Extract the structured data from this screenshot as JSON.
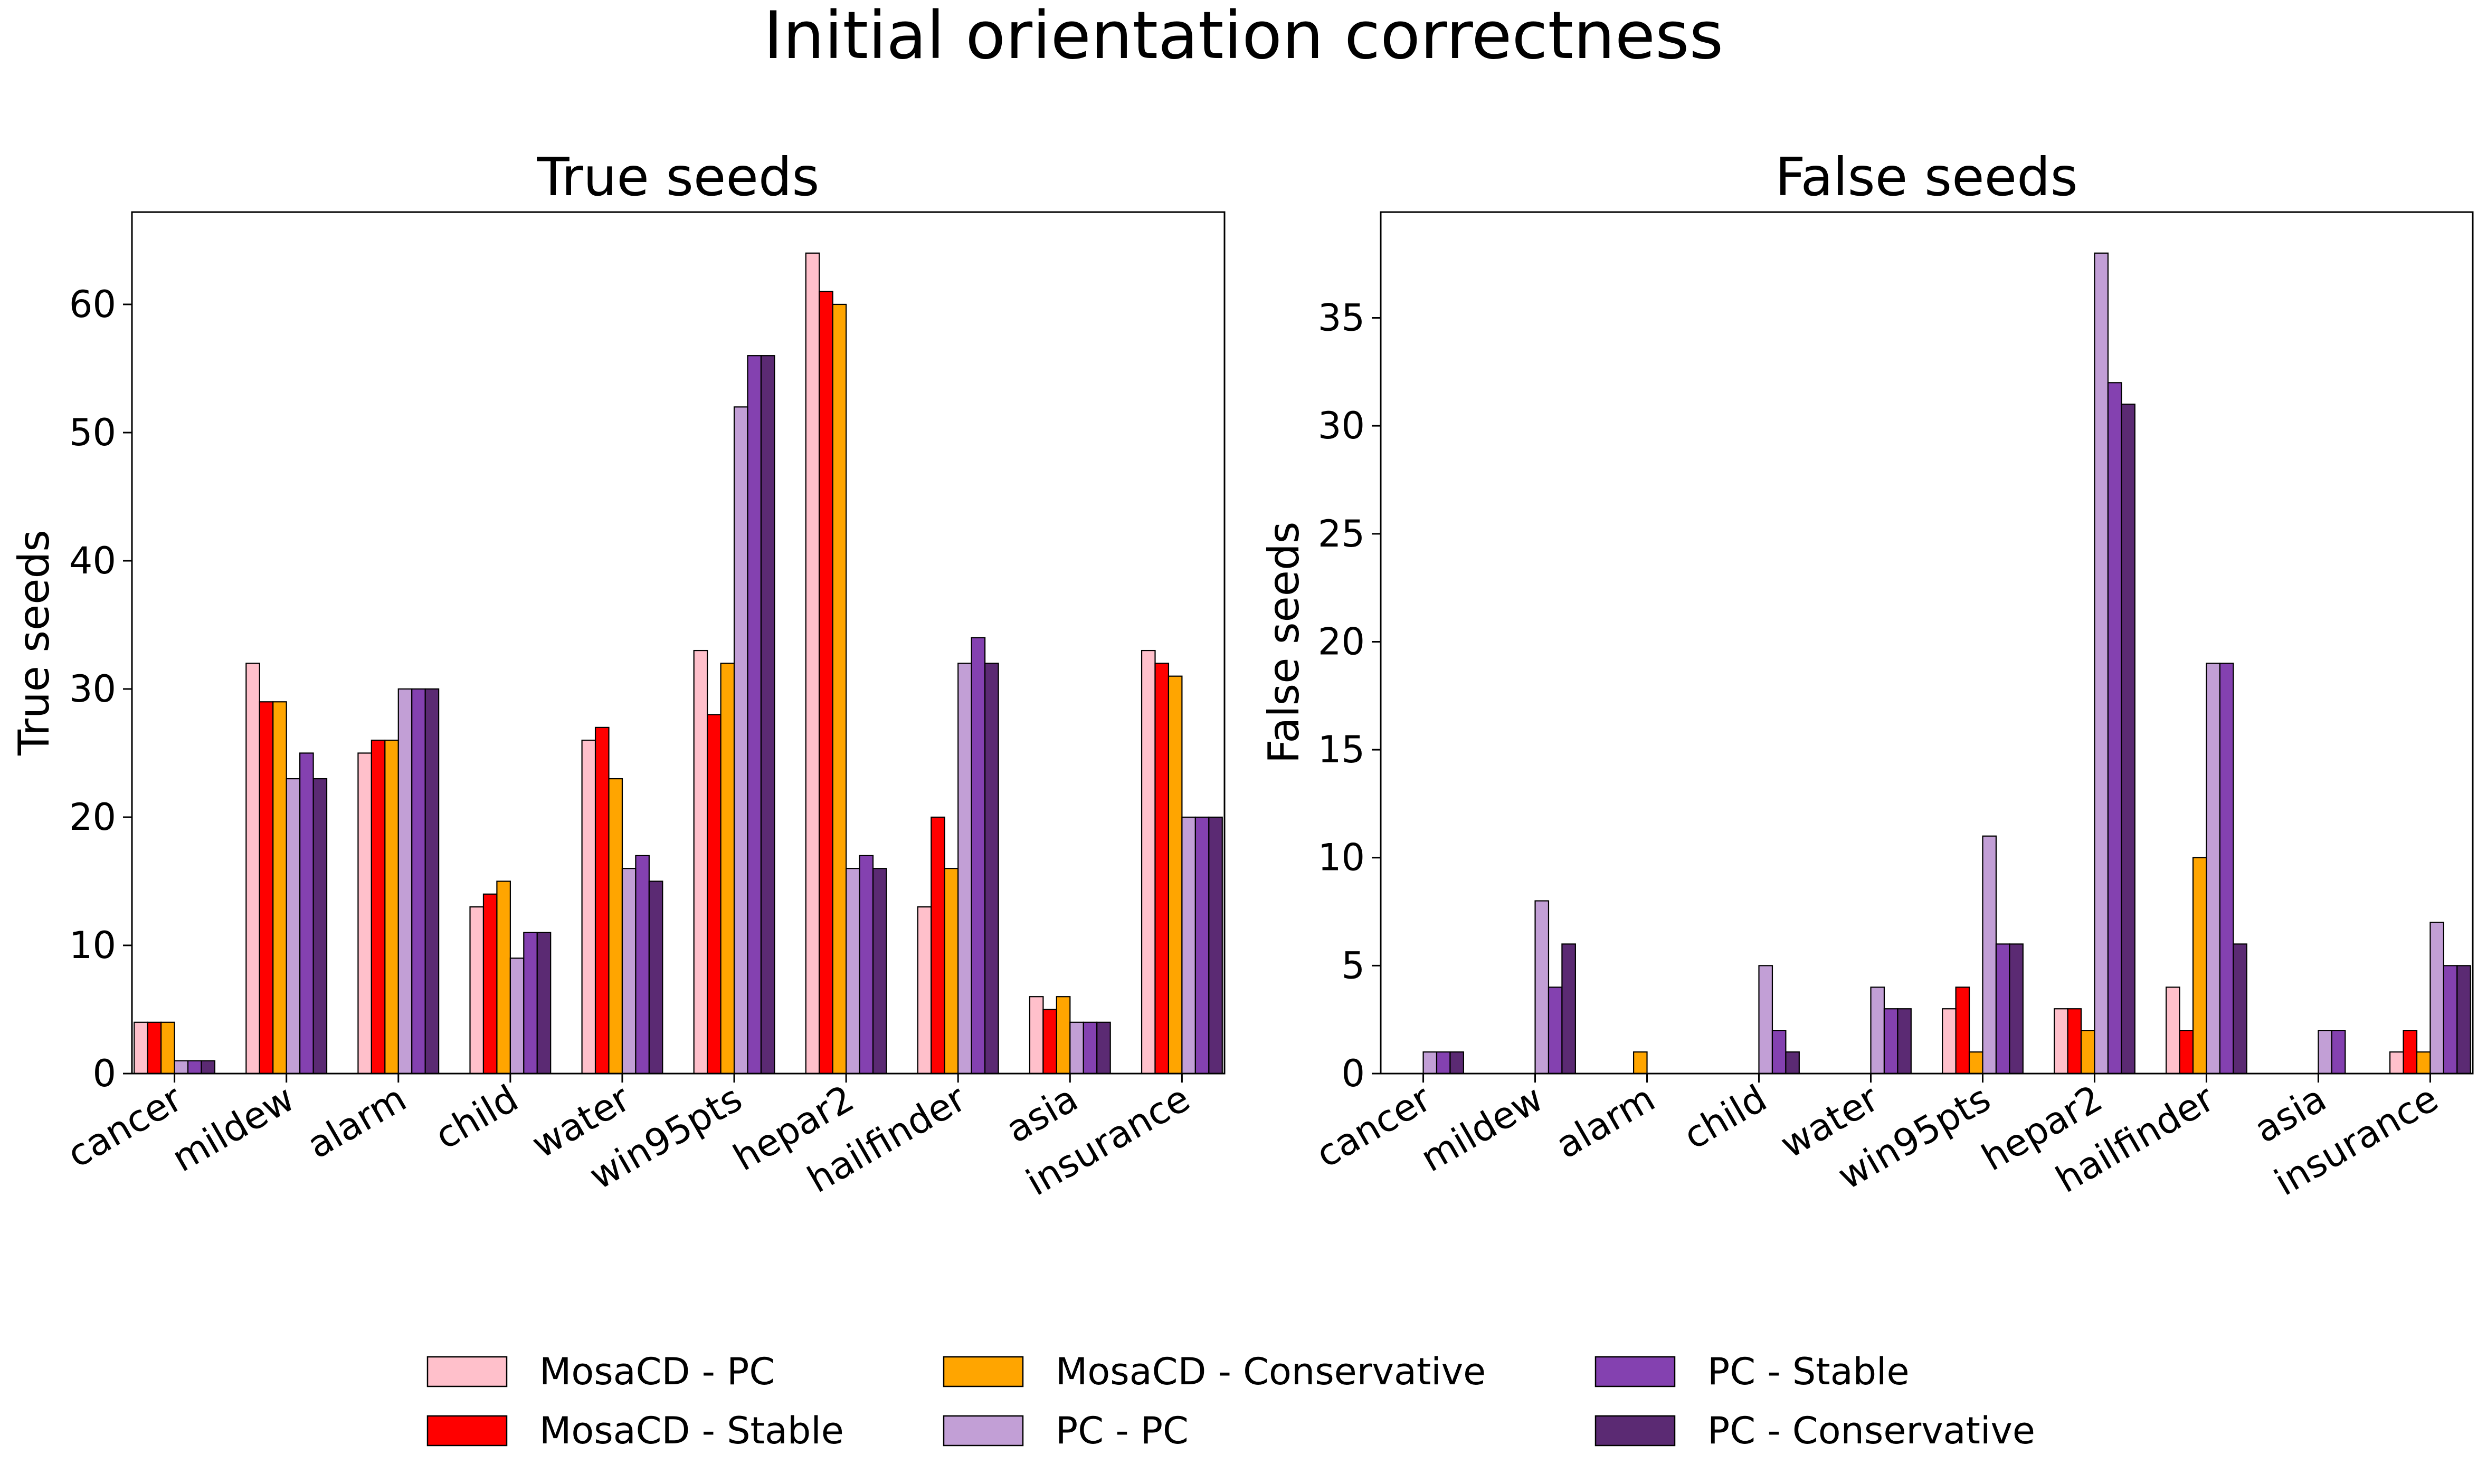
{
  "figure_title": "Initial orientation correctness",
  "series_names": [
    "MosaCD - PC",
    "MosaCD - Stable",
    "MosaCD - Conservative",
    "PC - PC",
    "PC - Stable",
    "PC - Conservative"
  ],
  "series_colors": [
    "#ffc0cb",
    "#ff0000",
    "#ffa500",
    "#c29fd6",
    "#8441b0",
    "#5b2a73"
  ],
  "chart_data": [
    {
      "type": "bar",
      "title": "True seeds",
      "xlabel": "",
      "ylabel": "True seeds",
      "ylim": [
        0,
        67.2
      ],
      "yticks": [
        0,
        10,
        20,
        30,
        40,
        50,
        60
      ],
      "categories": [
        "cancer",
        "mildew",
        "alarm",
        "child",
        "water",
        "win95pts",
        "hepar2",
        "hailfinder",
        "asia",
        "insurance"
      ],
      "series": [
        {
          "name": "MosaCD - PC",
          "values": [
            4,
            32,
            25,
            13,
            26,
            33,
            64,
            13,
            6,
            33
          ]
        },
        {
          "name": "MosaCD - Stable",
          "values": [
            4,
            29,
            26,
            14,
            27,
            28,
            61,
            20,
            5,
            32
          ]
        },
        {
          "name": "MosaCD - Conservative",
          "values": [
            4,
            29,
            26,
            15,
            23,
            32,
            60,
            16,
            6,
            31
          ]
        },
        {
          "name": "PC - PC",
          "values": [
            1,
            23,
            30,
            9,
            16,
            52,
            16,
            32,
            4,
            20
          ]
        },
        {
          "name": "PC - Stable",
          "values": [
            1,
            25,
            30,
            11,
            17,
            56,
            17,
            34,
            4,
            20
          ]
        },
        {
          "name": "PC - Conservative",
          "values": [
            1,
            23,
            30,
            11,
            15,
            56,
            16,
            32,
            4,
            20
          ]
        }
      ]
    },
    {
      "type": "bar",
      "title": "False seeds",
      "xlabel": "",
      "ylabel": "False seeds",
      "ylim": [
        0,
        39.9
      ],
      "yticks": [
        0,
        5,
        10,
        15,
        20,
        25,
        30,
        35
      ],
      "categories": [
        "cancer",
        "mildew",
        "alarm",
        "child",
        "water",
        "win95pts",
        "hepar2",
        "hailfinder",
        "asia",
        "insurance"
      ],
      "series": [
        {
          "name": "MosaCD - PC",
          "values": [
            0,
            0,
            0,
            0,
            0,
            3,
            3,
            4,
            0,
            1
          ]
        },
        {
          "name": "MosaCD - Stable",
          "values": [
            0,
            0,
            0,
            0,
            0,
            4,
            3,
            2,
            0,
            2
          ]
        },
        {
          "name": "MosaCD - Conservative",
          "values": [
            0,
            0,
            1,
            0,
            0,
            1,
            2,
            10,
            0,
            1
          ]
        },
        {
          "name": "PC - PC",
          "values": [
            1,
            8,
            0,
            5,
            4,
            11,
            38,
            19,
            2,
            7
          ]
        },
        {
          "name": "PC - Stable",
          "values": [
            1,
            4,
            0,
            2,
            3,
            6,
            32,
            19,
            2,
            5
          ]
        },
        {
          "name": "PC - Conservative",
          "values": [
            1,
            6,
            0,
            1,
            3,
            6,
            31,
            6,
            0,
            5
          ]
        }
      ]
    }
  ]
}
